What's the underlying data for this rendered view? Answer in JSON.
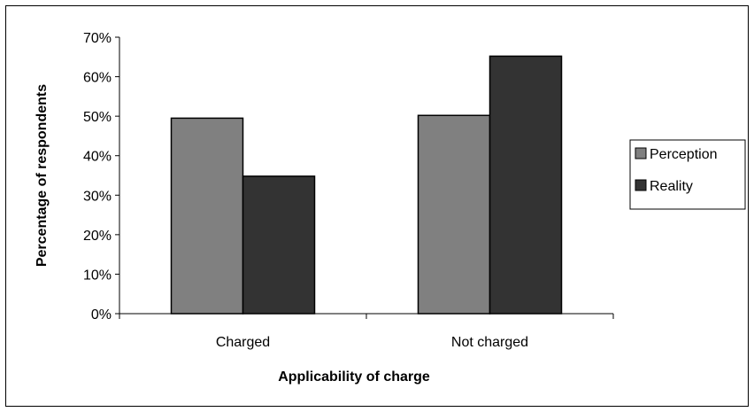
{
  "chart_data": {
    "type": "bar",
    "title": "",
    "xlabel": "Applicability of charge",
    "ylabel": "Percentage of respondents",
    "categories": [
      "Charged",
      "Not charged"
    ],
    "series": [
      {
        "name": "Perception",
        "values": [
          49.5,
          50.2
        ],
        "color": "#808080"
      },
      {
        "name": "Reality",
        "values": [
          34.8,
          65.2
        ],
        "color": "#333333"
      }
    ],
    "ylim": [
      0,
      70
    ],
    "yticks": [
      0,
      10,
      20,
      30,
      40,
      50,
      60,
      70
    ],
    "ytick_labels": [
      "0%",
      "10%",
      "20%",
      "30%",
      "40%",
      "50%",
      "60%",
      "70%"
    ],
    "grid": false,
    "legend_position": "right"
  }
}
